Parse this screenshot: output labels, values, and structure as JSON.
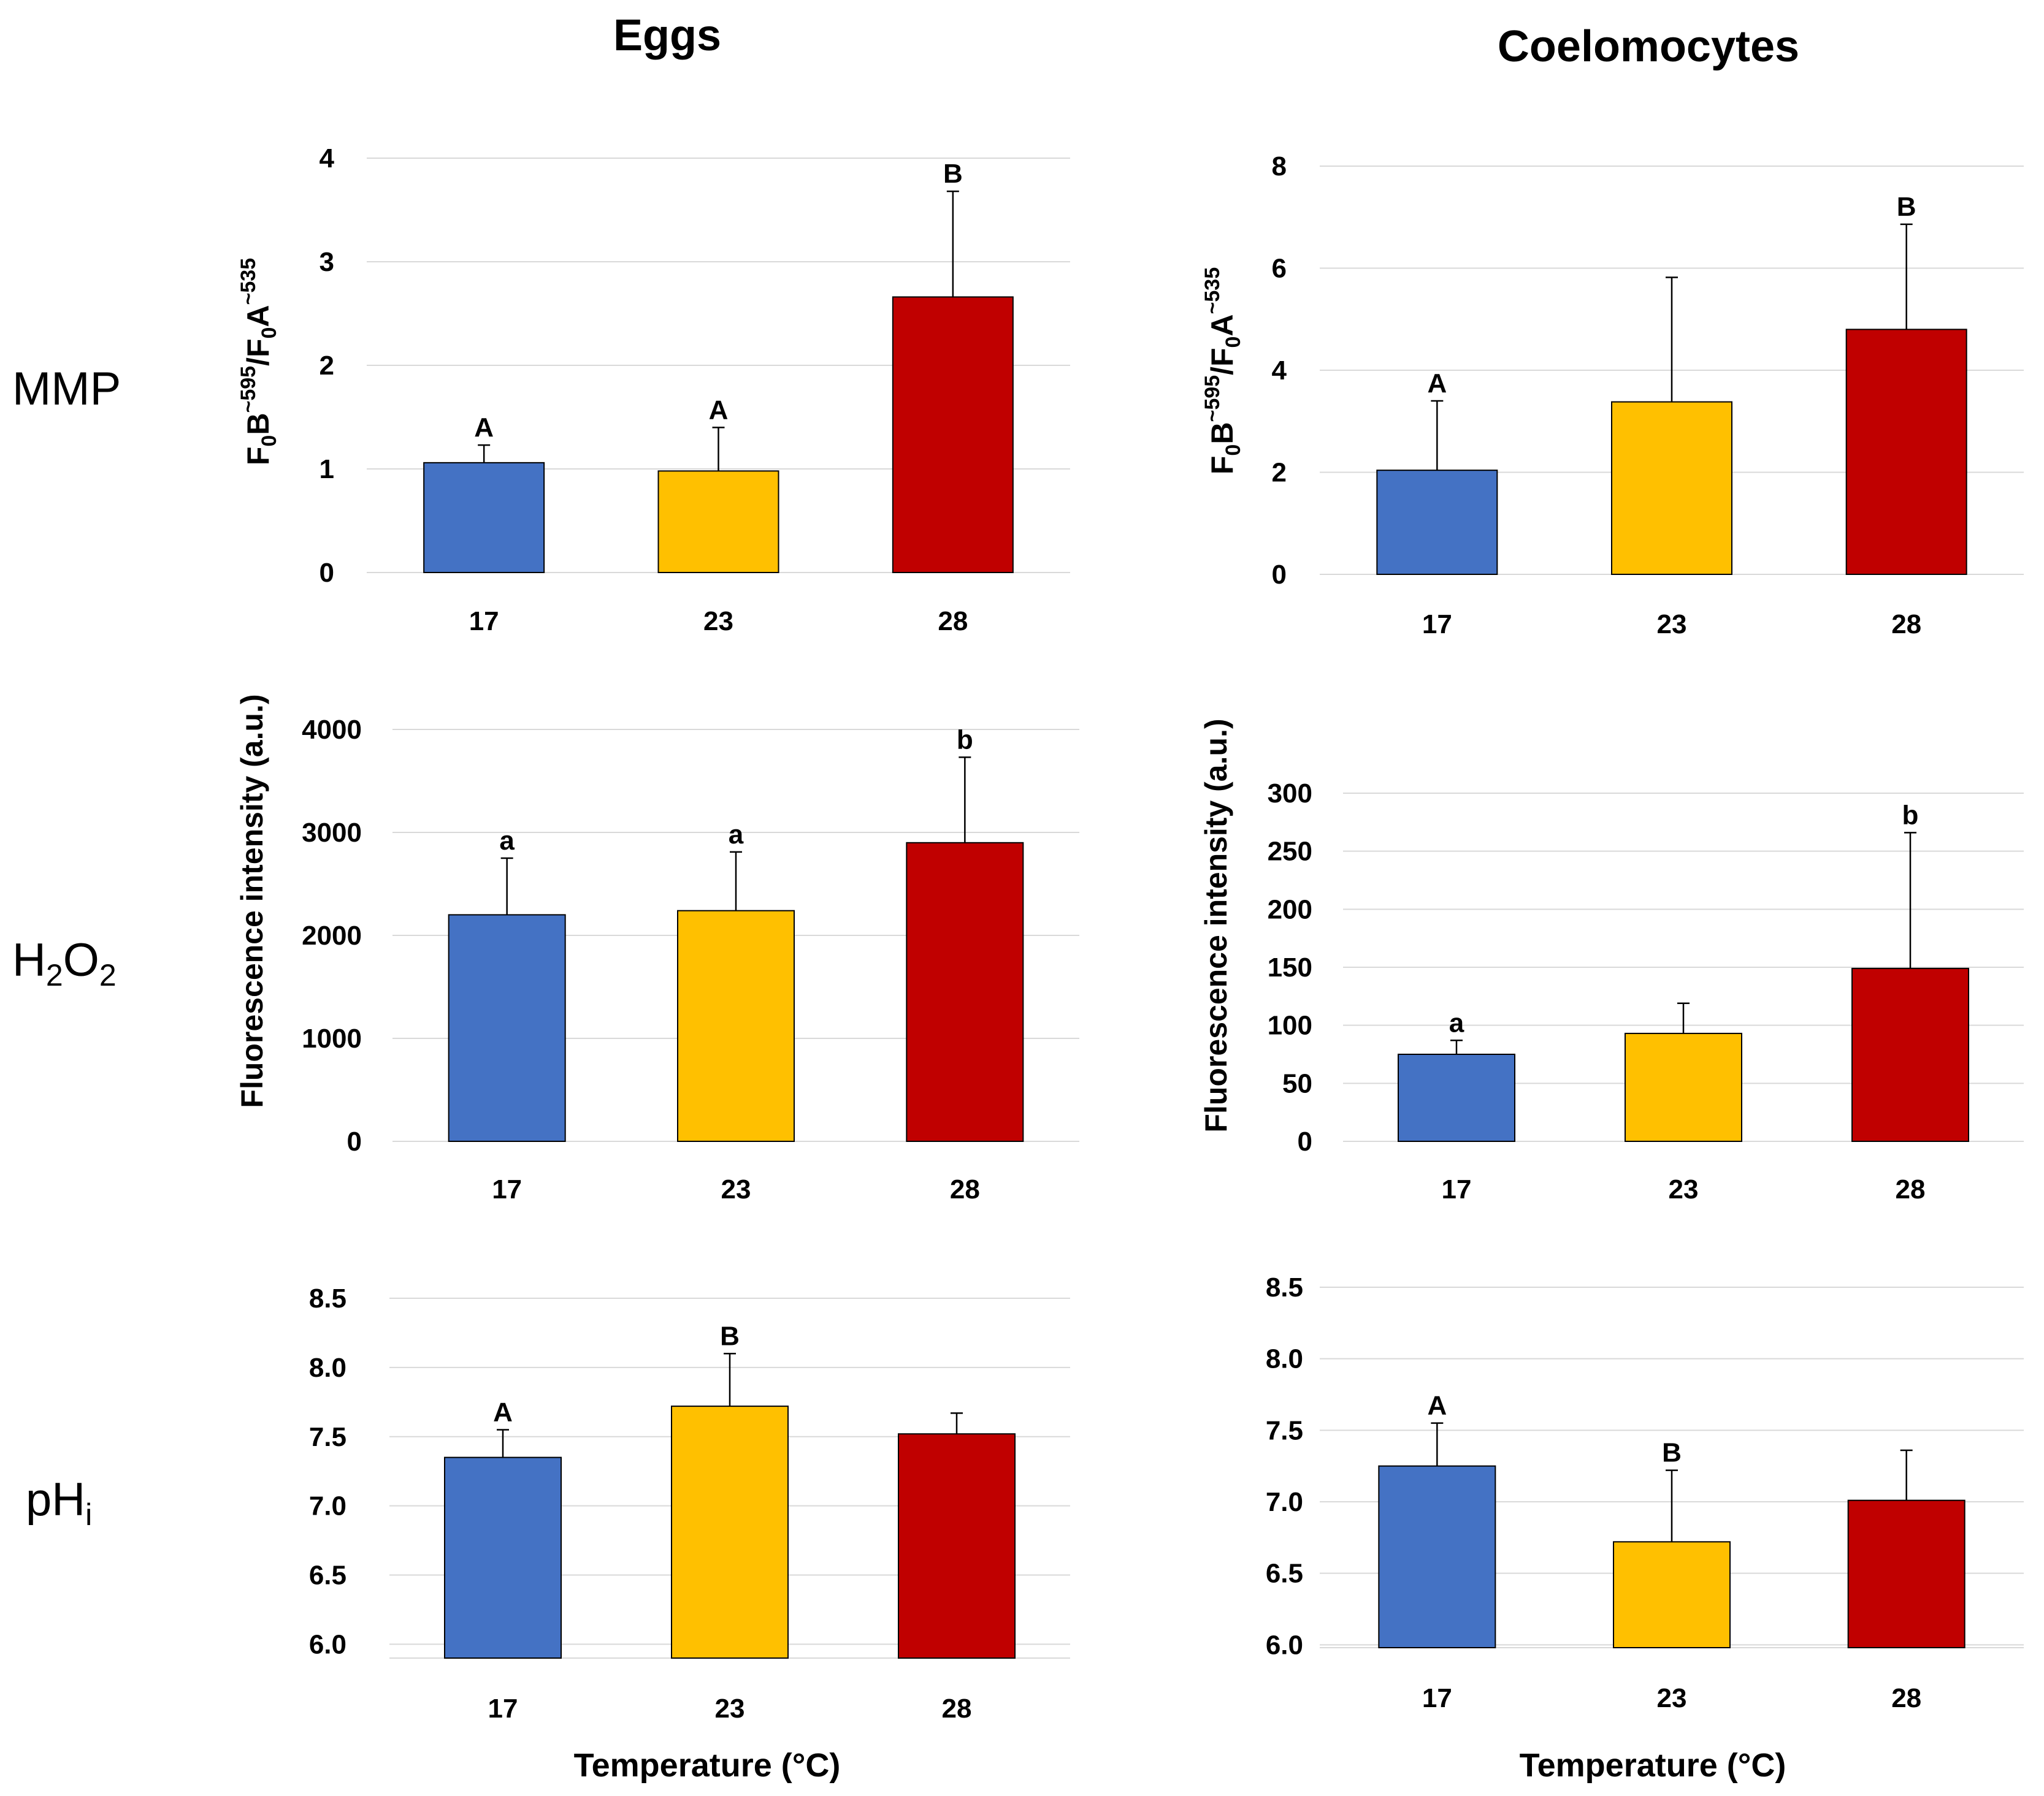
{
  "columns": {
    "eggs": "Eggs",
    "coelomocytes": "Coelomocytes"
  },
  "rows": {
    "mmp": "MMP",
    "h2o2": {
      "main": "H",
      "s1": "2",
      "mid": "O",
      "s2": "2"
    },
    "phi": {
      "main": "pH",
      "sub": "i"
    }
  },
  "ylabels": {
    "ratio": {
      "p1": "F",
      "s1": "0",
      "p2": "B",
      "sup1": "~595",
      "p3": "/F",
      "s2": "0",
      "p4": "A",
      "sup2": "~535"
    },
    "fluor": "Fluorescence intensity (a.u.)"
  },
  "xlabel": "Temperature (°C)",
  "colors": {
    "t17": "#4472C4",
    "t23": "#FFC000",
    "t28": "#C00000"
  },
  "chart_data": [
    {
      "id": "mmp_eggs",
      "type": "bar",
      "panel": "Eggs / MMP",
      "categories": [
        "17",
        "23",
        "28"
      ],
      "values": [
        1.06,
        0.98,
        2.66
      ],
      "errors": [
        0.17,
        0.42,
        1.02
      ],
      "letters": [
        "A",
        "A",
        "B"
      ],
      "ylim": [
        0,
        4
      ],
      "yticks": [
        0,
        1,
        2,
        3,
        4
      ],
      "tick_labels": [
        "0",
        "1",
        "2",
        "3",
        "4"
      ],
      "ylabel": "F0B~595/F0A~535",
      "xlabel": "",
      "grid": true
    },
    {
      "id": "mmp_coel",
      "type": "bar",
      "panel": "Coelomocytes / MMP",
      "categories": [
        "17",
        "23",
        "28"
      ],
      "values": [
        2.04,
        3.38,
        4.8
      ],
      "errors": [
        1.36,
        2.44,
        2.06
      ],
      "letters": [
        "A",
        "",
        "B"
      ],
      "ylim": [
        0,
        8
      ],
      "yticks": [
        0,
        2,
        4,
        6,
        8
      ],
      "tick_labels": [
        "0",
        "2",
        "4",
        "6",
        "8"
      ],
      "ylabel": "F0B~595/F0A~535",
      "xlabel": "",
      "grid": true
    },
    {
      "id": "h2o2_eggs",
      "type": "bar",
      "panel": "Eggs / H2O2",
      "categories": [
        "17",
        "23",
        "28"
      ],
      "values": [
        2200,
        2240,
        2900
      ],
      "errors": [
        550,
        570,
        830
      ],
      "letters": [
        "a",
        "a",
        "b"
      ],
      "ylim": [
        0,
        4000
      ],
      "yticks": [
        0,
        1000,
        2000,
        3000,
        4000
      ],
      "tick_labels": [
        "0",
        "1000",
        "2000",
        "3000",
        "4000"
      ],
      "ylabel": "Fluorescence intensity (a.u.)",
      "xlabel": "",
      "grid": true
    },
    {
      "id": "h2o2_coel",
      "type": "bar",
      "panel": "Coelomocytes / H2O2",
      "categories": [
        "17",
        "23",
        "28"
      ],
      "values": [
        75,
        93,
        149
      ],
      "errors": [
        12,
        26,
        117
      ],
      "letters": [
        "a",
        "",
        "b"
      ],
      "ylim": [
        0,
        300
      ],
      "yticks": [
        0,
        50,
        100,
        150,
        200,
        250,
        300
      ],
      "tick_labels": [
        "0",
        "50",
        "100",
        "150",
        "200",
        "250",
        "300"
      ],
      "ylabel": "Fluorescence intensity (a.u.)",
      "xlabel": "",
      "grid": true
    },
    {
      "id": "phi_eggs",
      "type": "bar",
      "panel": "Eggs / pHi",
      "categories": [
        "17",
        "23",
        "28"
      ],
      "values": [
        7.35,
        7.72,
        7.52
      ],
      "errors": [
        0.2,
        0.38,
        0.15
      ],
      "letters": [
        "A",
        "B",
        ""
      ],
      "ylim": [
        5.9,
        8.5
      ],
      "yticks": [
        6.0,
        6.5,
        7.0,
        7.5,
        8.0,
        8.5
      ],
      "tick_labels": [
        "6.0",
        "6.5",
        "7.0",
        "7.5",
        "8.0",
        "8.5"
      ],
      "ylabel": "",
      "xlabel": "Temperature (°C)",
      "grid": true
    },
    {
      "id": "phi_coel",
      "type": "bar",
      "panel": "Coelomocytes / pHi",
      "categories": [
        "17",
        "23",
        "28"
      ],
      "values": [
        7.25,
        6.72,
        7.01
      ],
      "errors": [
        0.3,
        0.5,
        0.35
      ],
      "letters": [
        "A",
        "B",
        ""
      ],
      "ylim": [
        5.98,
        8.5
      ],
      "yticks": [
        6.0,
        6.5,
        7.0,
        7.5,
        8.0,
        8.5
      ],
      "tick_labels": [
        "6.0",
        "6.5",
        "7.0",
        "7.5",
        "8.0",
        "8.5"
      ],
      "ylabel": "",
      "xlabel": "Temperature (°C)",
      "grid": true
    }
  ]
}
